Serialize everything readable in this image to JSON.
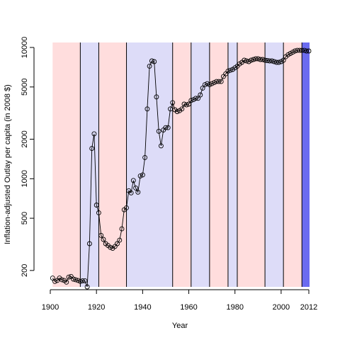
{
  "chart_data": {
    "type": "scatter",
    "title": "",
    "xlabel": "Year",
    "ylabel": "Inflation-adjusted Outlay per capita (in 2008 $)",
    "xlim": [
      1900,
      2012
    ],
    "ylim": [
      150,
      10000
    ],
    "y_scale": "log",
    "grid": false,
    "legend": "none",
    "x_ticks": [
      1900,
      1920,
      1940,
      1960,
      1980,
      2000,
      2012
    ],
    "x_tick_labels": [
      "1900",
      "1920",
      "1940",
      "1960",
      "1980",
      "2000",
      "2012"
    ],
    "y_ticks": [
      200,
      500,
      1000,
      2000,
      5000,
      10000
    ],
    "y_tick_labels": [
      "200",
      "500",
      "1000",
      "2000",
      "5000",
      "10000"
    ],
    "series": [
      {
        "marker": "open-circle",
        "line": "solid",
        "color": "#000000",
        "x": [
          1901,
          1902,
          1903,
          1904,
          1905,
          1906,
          1907,
          1908,
          1909,
          1910,
          1911,
          1912,
          1913,
          1914,
          1915,
          1916,
          1917,
          1918,
          1919,
          1920,
          1921,
          1922,
          1923,
          1924,
          1925,
          1926,
          1927,
          1928,
          1929,
          1930,
          1931,
          1932,
          1933,
          1934,
          1935,
          1936,
          1937,
          1938,
          1939,
          1940,
          1941,
          1942,
          1943,
          1944,
          1945,
          1946,
          1947,
          1948,
          1949,
          1950,
          1951,
          1952,
          1953,
          1954,
          1955,
          1956,
          1957,
          1958,
          1959,
          1960,
          1961,
          1962,
          1963,
          1964,
          1965,
          1966,
          1967,
          1968,
          1969,
          1970,
          1971,
          1972,
          1973,
          1974,
          1975,
          1976,
          1977,
          1978,
          1979,
          1980,
          1981,
          1982,
          1983,
          1984,
          1985,
          1986,
          1987,
          1988,
          1989,
          1990,
          1991,
          1992,
          1993,
          1994,
          1995,
          1996,
          1997,
          1998,
          1999,
          2000,
          2001,
          2002,
          2003,
          2004,
          2005,
          2006,
          2007,
          2008,
          2009,
          2010,
          2011,
          2012
        ],
        "y": [
          175,
          165,
          168,
          175,
          170,
          168,
          163,
          178,
          180,
          172,
          170,
          168,
          165,
          167,
          167,
          150,
          320,
          1700,
          2200,
          630,
          550,
          370,
          345,
          320,
          310,
          300,
          295,
          305,
          320,
          340,
          415,
          580,
          600,
          810,
          780,
          970,
          850,
          790,
          1050,
          1070,
          1450,
          3400,
          7200,
          7900,
          7800,
          4200,
          2300,
          1780,
          2350,
          2450,
          2450,
          3400,
          3800,
          3350,
          3250,
          3300,
          3400,
          3700,
          3650,
          3700,
          3950,
          4000,
          4100,
          4100,
          4350,
          4900,
          5200,
          5300,
          5200,
          5300,
          5400,
          5500,
          5500,
          5500,
          6000,
          6300,
          6600,
          6700,
          6800,
          7000,
          7200,
          7500,
          7700,
          8000,
          7900,
          7800,
          8000,
          8100,
          8200,
          8200,
          8100,
          8100,
          8000,
          7950,
          7900,
          7900,
          7800,
          7700,
          7700,
          7800,
          8000,
          8500,
          8800,
          9000,
          9200,
          9400,
          9500,
          9500,
          9500,
          9500,
          9400,
          9400
        ]
      }
    ],
    "background_bands": [
      {
        "start": 1901,
        "end": 1913,
        "color": "#ffdddd"
      },
      {
        "start": 1913,
        "end": 1921,
        "color": "#dddcf8"
      },
      {
        "start": 1921,
        "end": 1933,
        "color": "#ffdddd"
      },
      {
        "start": 1933,
        "end": 1953,
        "color": "#dddcf8"
      },
      {
        "start": 1953,
        "end": 1961,
        "color": "#ffdddd"
      },
      {
        "start": 1961,
        "end": 1969,
        "color": "#dddcf8"
      },
      {
        "start": 1969,
        "end": 1977,
        "color": "#ffdddd"
      },
      {
        "start": 1977,
        "end": 1981,
        "color": "#dddcf8"
      },
      {
        "start": 1981,
        "end": 1993,
        "color": "#ffdddd"
      },
      {
        "start": 1993,
        "end": 2001,
        "color": "#dddcf8"
      },
      {
        "start": 2001,
        "end": 2009,
        "color": "#ffdddd"
      },
      {
        "start": 2009,
        "end": 2013,
        "color": "#6b6bf0"
      }
    ]
  }
}
